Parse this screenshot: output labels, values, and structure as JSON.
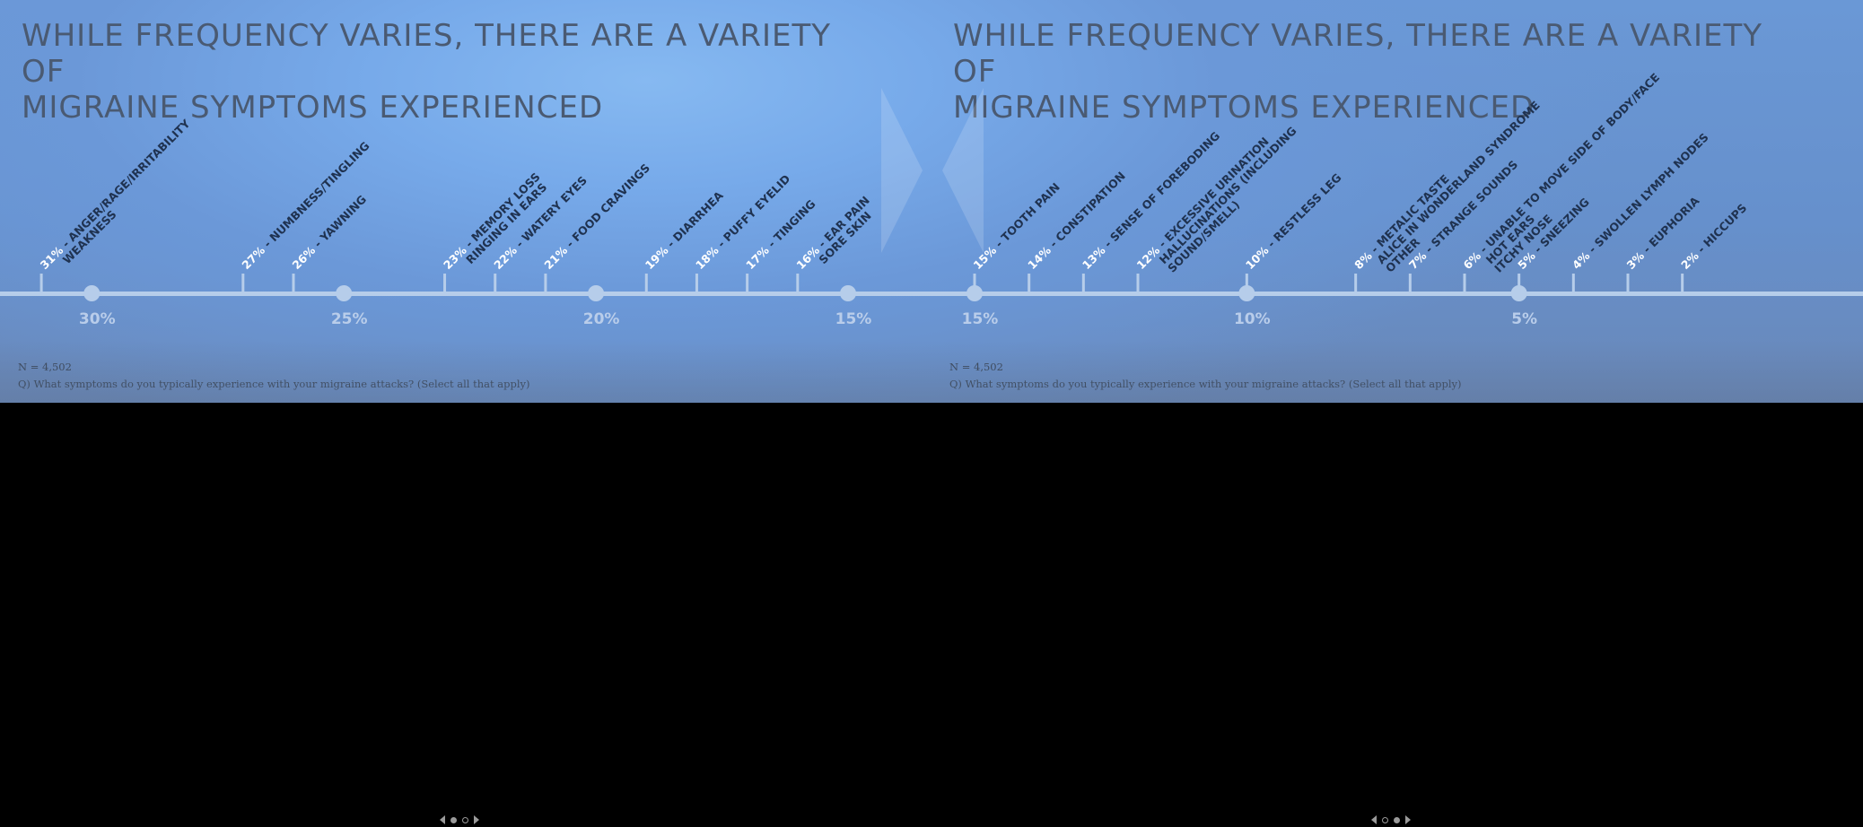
{
  "slides": [
    {
      "title": "WHILE FREQUENCY VARIES, THERE ARE A VARIETY OF\nMIGRAINE SYMPTOMS EXPERIENCED",
      "n_label": "N = 4,502",
      "question": "Q) What symptoms do you typically experience with your migraine attacks? (Select all that apply)",
      "nav": {
        "active_dot": 0,
        "dot_count": 2
      },
      "axis": {
        "from_percent": 31.5,
        "to_percent": 15,
        "ticks": [
          30,
          25,
          20,
          15
        ]
      },
      "symptoms": [
        {
          "percent": 31,
          "label": "31% - ANGER/RAGE/IRRITABILITY\nWEAKNESS"
        },
        {
          "percent": 27,
          "label": "27% - NUMBNESS/TINGLING"
        },
        {
          "percent": 26,
          "label": "26% - YAWNING"
        },
        {
          "percent": 23,
          "label": "23% - MEMORY LOSS\nRINGING IN EARS"
        },
        {
          "percent": 22,
          "label": "22% - WATERY EYES"
        },
        {
          "percent": 21,
          "label": "21% - FOOD CRAVINGS"
        },
        {
          "percent": 19,
          "label": "19% - DIARRHEA"
        },
        {
          "percent": 18,
          "label": "18% - PUFFY EYELID"
        },
        {
          "percent": 17,
          "label": "17% - TINGING"
        },
        {
          "percent": 16,
          "label": "16% - EAR PAIN\nSORE SKIN"
        }
      ]
    },
    {
      "title": "WHILE FREQUENCY VARIES, THERE ARE A VARIETY OF\nMIGRAINE SYMPTOMS EXPERIENCED",
      "n_label": "N = 4,502",
      "question": "Q) What symptoms do you typically experience with your migraine attacks? (Select all that apply)",
      "nav": {
        "active_dot": 1,
        "dot_count": 2
      },
      "axis": {
        "from_percent": 15,
        "to_percent": 1.5,
        "ticks": [
          15,
          10,
          5
        ]
      },
      "symptoms": [
        {
          "percent": 15,
          "label": "15% - TOOTH PAIN"
        },
        {
          "percent": 14,
          "label": "14% - CONSTIPATION"
        },
        {
          "percent": 13,
          "label": "13% - SENSE OF FOREBODING"
        },
        {
          "percent": 12,
          "label": "12% - EXCESSIVE URINATION\nHALLUCINATIONS (INCLUDING\nSOUND/SMELL)"
        },
        {
          "percent": 10,
          "label": "10% - RESTLESS LEG"
        },
        {
          "percent": 8,
          "label": "8% - METALIC TASTE\nALICE IN WONDERLAND SYNDROME\nOTHER"
        },
        {
          "percent": 7,
          "label": "7% - STRANGE SOUNDS"
        },
        {
          "percent": 6,
          "label": "6% - UNABLE TO MOVE SIDE OF BODY/FACE\nHOT EARS\nITCHY NOSE"
        },
        {
          "percent": 5,
          "label": "5% - SNEEZING"
        },
        {
          "percent": 4,
          "label": "4% - SWOLLEN LYMPH NODES"
        },
        {
          "percent": 3,
          "label": "3% - EUPHORIA"
        },
        {
          "percent": 2,
          "label": "2% - HICCUPS"
        }
      ]
    }
  ]
}
